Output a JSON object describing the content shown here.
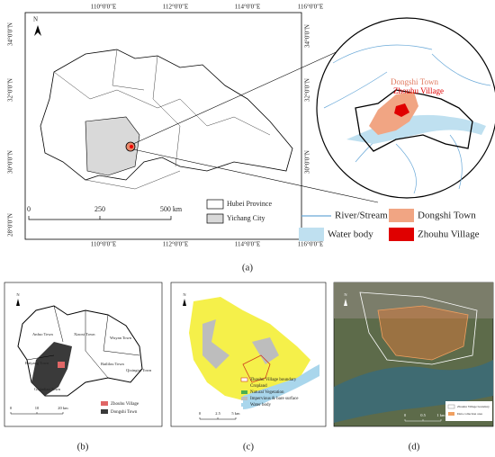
{
  "panel_a": {
    "north": "N",
    "top_lon_labels": [
      "110°0'0\"E",
      "112°0'0\"E",
      "114°0'0\"E",
      "116°0'0\"E"
    ],
    "bottom_lon_labels": [
      "110°0'0\"E",
      "112°0'0\"E",
      "114°0'0\"E",
      "116°0'0\"E"
    ],
    "left_lat_labels": [
      "34°0'0\"N",
      "32°0'0\"N",
      "30°0'0\"N",
      "28°0'0\"N"
    ],
    "right_lat_labels": [
      "34°0'0\"N",
      "32°0'0\"N",
      "30°0'0\"N"
    ],
    "legend": [
      "Hubei Province",
      "Yichang City"
    ],
    "scale": [
      "0",
      "250",
      "500 km"
    ],
    "inset_labels": [
      "Dongshi Town",
      "Zhouhu Village"
    ],
    "bottom_legend": [
      "River/Stream",
      "Dongshi Town",
      "Water body",
      "Zhouhu Village"
    ],
    "caption": "(a)"
  },
  "panel_b": {
    "north": "N",
    "towns": [
      "Anfuo Town",
      "Xiaoxi Town",
      "Wuyan Town",
      "Baiyang Town",
      "Baililou Town",
      "Gujiadian Town",
      "Qixingtai Town"
    ],
    "legend": [
      "Zhouhu Village",
      "Dongshi Town"
    ],
    "scale": [
      "0",
      "10",
      "20 km"
    ],
    "caption": "(b)"
  },
  "panel_c": {
    "north": "N",
    "legend": [
      "Zhouhu Village boundary",
      "Cropland",
      "Natural Vegetation",
      "Impervious & bare surface",
      "Water body"
    ],
    "scale": [
      "0",
      "2.5",
      "5 km"
    ],
    "caption": "(c)"
  },
  "panel_d": {
    "north": "N",
    "legend": [
      "Zhouhu Village boundary",
      "Data collection area"
    ],
    "scale": [
      "0",
      "0.5",
      "1 km"
    ],
    "caption": "(d)"
  }
}
